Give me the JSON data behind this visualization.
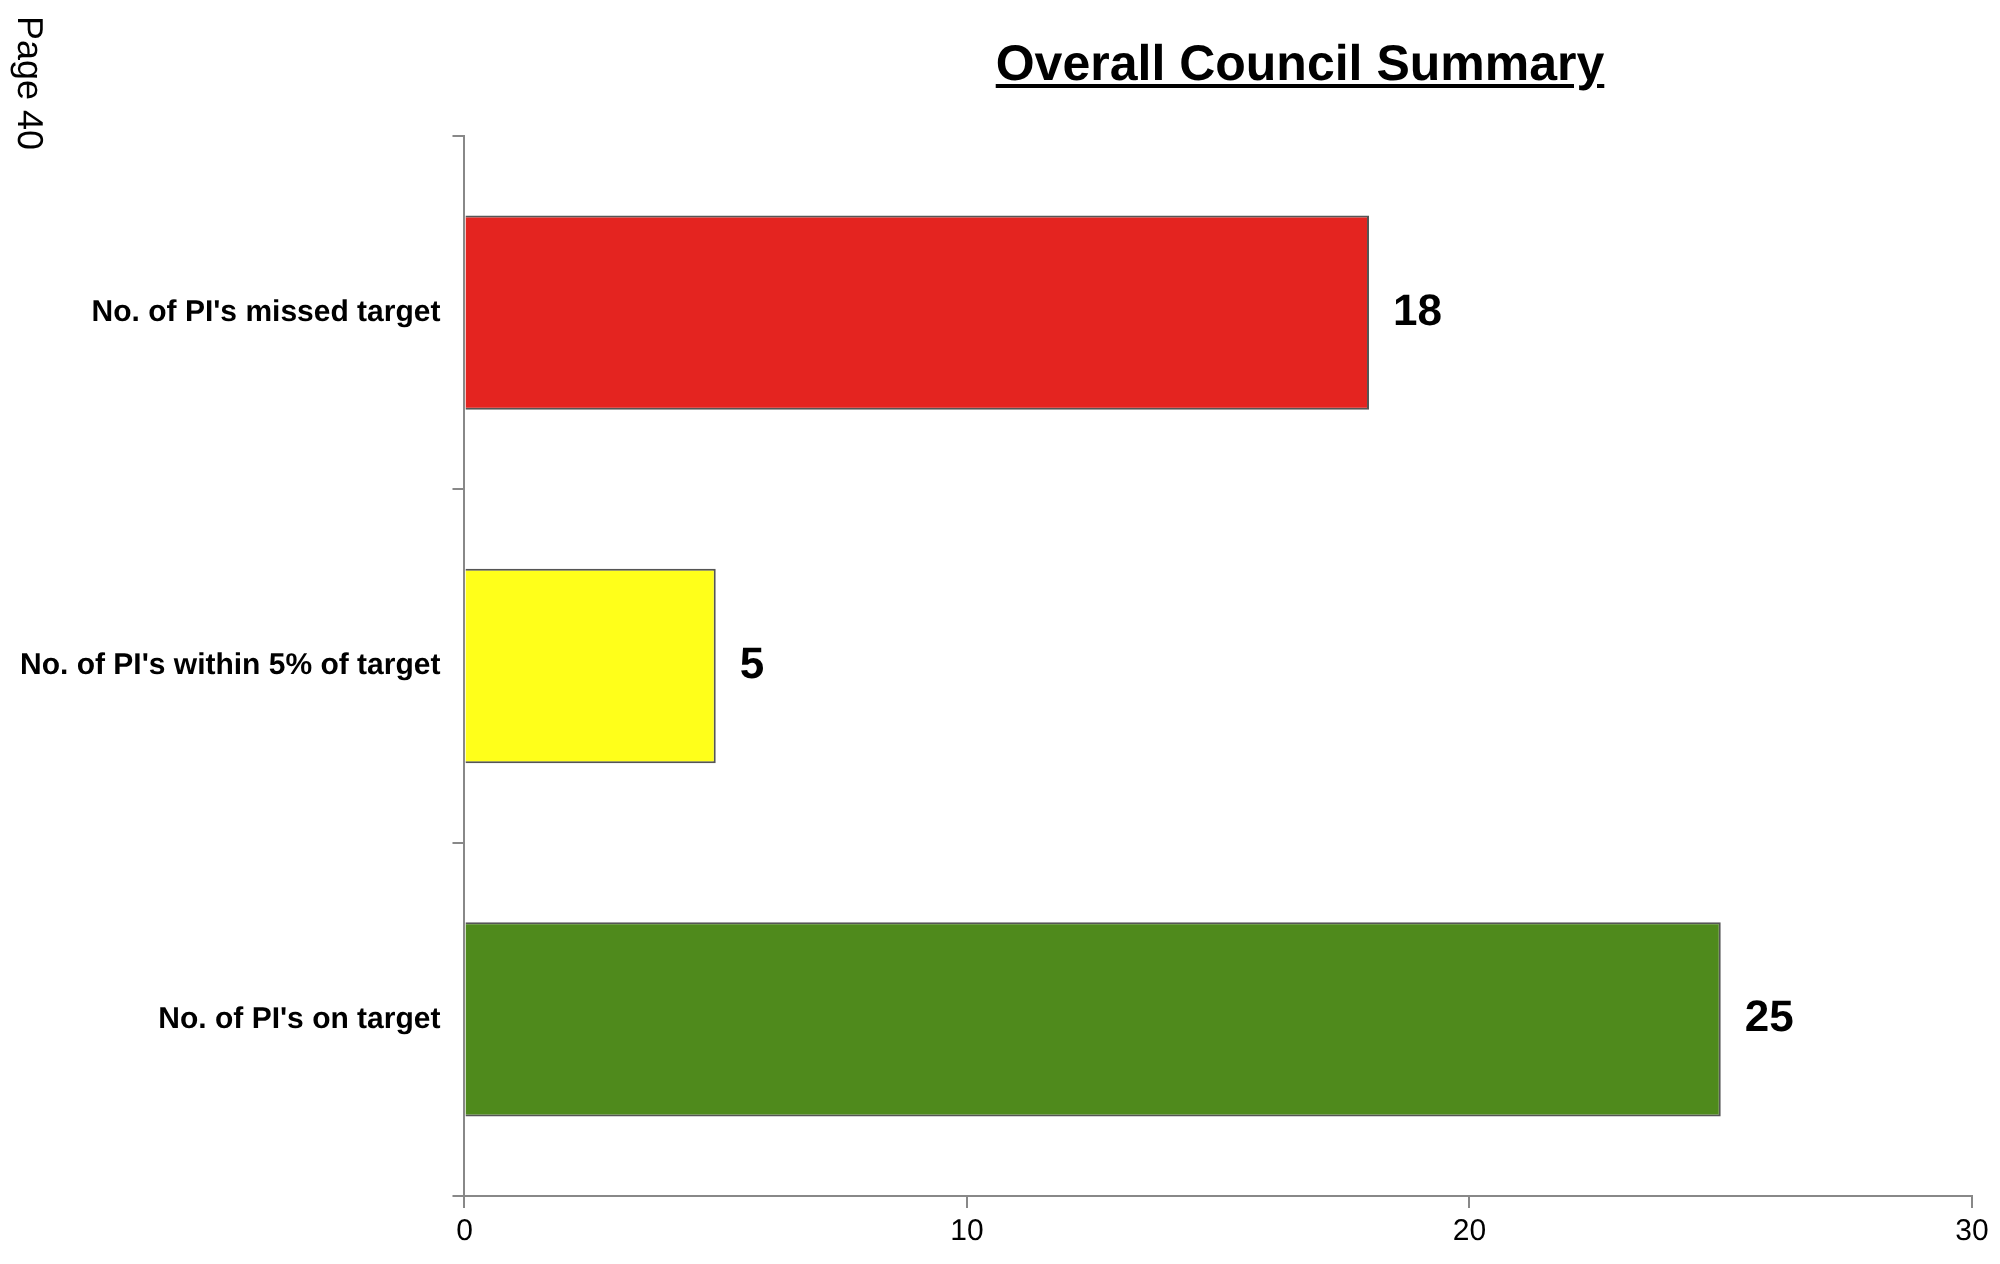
{
  "chart_data": {
    "type": "bar",
    "orientation": "horizontal",
    "title": "Overall Council Summary",
    "categories": [
      "No. of PI's missed target",
      "No. of PI's within 5% of target",
      "No. of PI's on target"
    ],
    "values": [
      18,
      5,
      25
    ],
    "colors": [
      "#e42420",
      "#ffff1a",
      "#4f8a1c"
    ],
    "xlim": [
      0,
      30
    ],
    "xticks": [
      0,
      10,
      20,
      30
    ],
    "data_labels": true,
    "legend": false,
    "annotations": [
      "Page 40"
    ]
  }
}
